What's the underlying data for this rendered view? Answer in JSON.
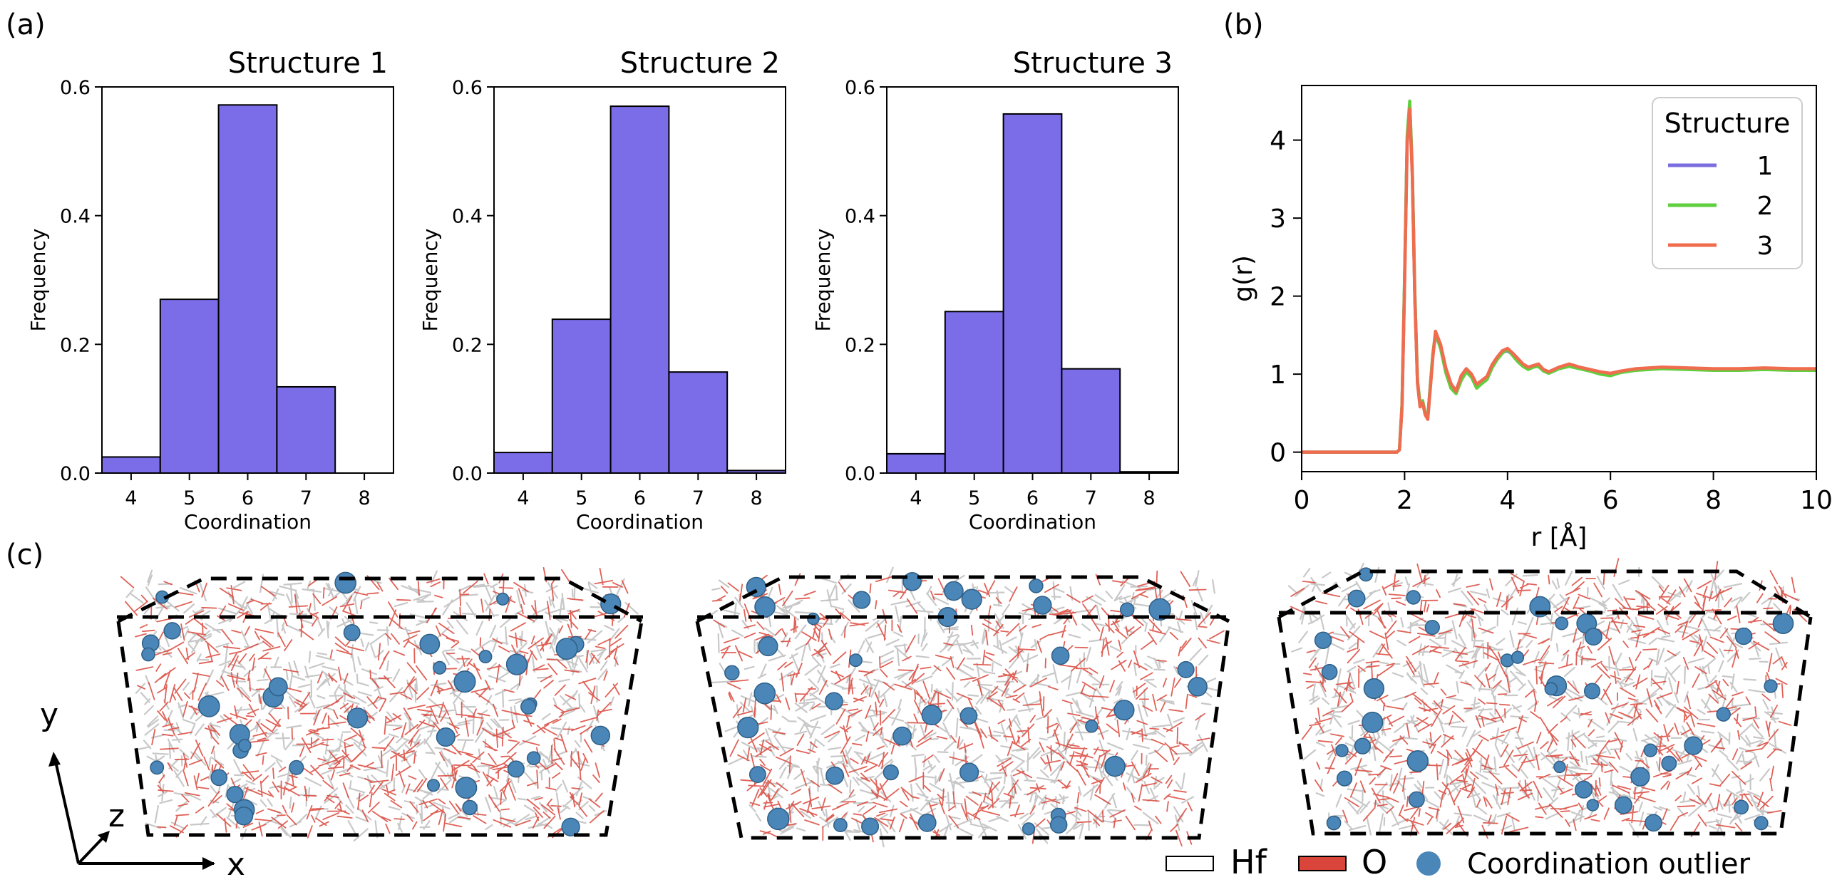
{
  "panel_labels": {
    "a": "(a)",
    "b": "(b)",
    "c": "(c)"
  },
  "chart_data": [
    {
      "type": "bar",
      "title": "Structure 1",
      "xlabel": "Coordination",
      "ylabel": "Frequency",
      "xlim": [
        3.5,
        8.5
      ],
      "ylim": [
        0,
        0.6
      ],
      "xticks": [
        "4",
        "5",
        "6",
        "7",
        "8"
      ],
      "yticks": [
        "0.0",
        "0.2",
        "0.4",
        "0.6"
      ],
      "bin_centers": [
        4,
        5,
        6,
        7,
        8
      ],
      "values": [
        0.025,
        0.27,
        0.572,
        0.134,
        0.0
      ],
      "bar_color": "#7b6ce8"
    },
    {
      "type": "bar",
      "title": "Structure 2",
      "xlabel": "Coordination",
      "ylabel": "Frequency",
      "xlim": [
        3.5,
        8.5
      ],
      "ylim": [
        0,
        0.6
      ],
      "xticks": [
        "4",
        "5",
        "6",
        "7",
        "8"
      ],
      "yticks": [
        "0.0",
        "0.2",
        "0.4",
        "0.6"
      ],
      "bin_centers": [
        4,
        5,
        6,
        7,
        8
      ],
      "values": [
        0.032,
        0.239,
        0.57,
        0.157,
        0.004
      ],
      "bar_color": "#7b6ce8"
    },
    {
      "type": "bar",
      "title": "Structure 3",
      "xlabel": "Coordination",
      "ylabel": "Frequency",
      "xlim": [
        3.5,
        8.5
      ],
      "ylim": [
        0,
        0.6
      ],
      "xticks": [
        "4",
        "5",
        "6",
        "7",
        "8"
      ],
      "yticks": [
        "0.0",
        "0.2",
        "0.4",
        "0.6"
      ],
      "bin_centers": [
        4,
        5,
        6,
        7,
        8
      ],
      "values": [
        0.03,
        0.251,
        0.558,
        0.162,
        0.002
      ],
      "bar_color": "#7b6ce8"
    },
    {
      "type": "line",
      "title": "",
      "xlabel": "r [Å]",
      "ylabel": "g(r)",
      "xlim": [
        0,
        10
      ],
      "ylim": [
        -0.25,
        4.7
      ],
      "xticks": [
        "0",
        "2",
        "4",
        "6",
        "8",
        "10"
      ],
      "yticks": [
        "0",
        "1",
        "2",
        "3",
        "4"
      ],
      "legend": {
        "title": "Structure",
        "position": "upper-right"
      },
      "x": [
        0,
        1.85,
        1.9,
        1.95,
        2.0,
        2.05,
        2.1,
        2.15,
        2.2,
        2.25,
        2.3,
        2.35,
        2.4,
        2.45,
        2.5,
        2.55,
        2.6,
        2.7,
        2.8,
        2.9,
        3.0,
        3.1,
        3.2,
        3.3,
        3.4,
        3.5,
        3.6,
        3.7,
        3.8,
        3.9,
        4.0,
        4.1,
        4.2,
        4.3,
        4.4,
        4.5,
        4.6,
        4.7,
        4.8,
        4.9,
        5.0,
        5.2,
        5.4,
        5.6,
        5.8,
        6.0,
        6.2,
        6.5,
        7.0,
        7.5,
        8.0,
        8.5,
        9.0,
        9.5,
        10.0
      ],
      "series": [
        {
          "name": "1",
          "color": "#7a6ddf",
          "values": [
            0,
            0.0,
            0.03,
            0.6,
            2.2,
            4.0,
            4.45,
            3.6,
            2.0,
            0.9,
            0.6,
            0.65,
            0.5,
            0.45,
            0.85,
            1.25,
            1.5,
            1.35,
            1.05,
            0.85,
            0.8,
            0.95,
            1.05,
            0.98,
            0.85,
            0.9,
            0.95,
            1.1,
            1.2,
            1.28,
            1.3,
            1.25,
            1.18,
            1.12,
            1.08,
            1.1,
            1.12,
            1.05,
            1.02,
            1.05,
            1.08,
            1.12,
            1.08,
            1.05,
            1.02,
            1.0,
            1.03,
            1.06,
            1.08,
            1.07,
            1.06,
            1.06,
            1.07,
            1.06,
            1.06
          ]
        },
        {
          "name": "2",
          "color": "#5fcf3e",
          "values": [
            0,
            0.0,
            0.03,
            0.62,
            2.25,
            4.05,
            4.5,
            3.62,
            2.02,
            0.92,
            0.62,
            0.66,
            0.5,
            0.45,
            0.86,
            1.27,
            1.52,
            1.33,
            1.02,
            0.82,
            0.75,
            0.92,
            1.03,
            0.96,
            0.82,
            0.88,
            0.93,
            1.08,
            1.19,
            1.27,
            1.32,
            1.24,
            1.16,
            1.1,
            1.06,
            1.09,
            1.1,
            1.04,
            1.01,
            1.04,
            1.07,
            1.1,
            1.07,
            1.04,
            1.0,
            0.98,
            1.02,
            1.05,
            1.07,
            1.06,
            1.05,
            1.05,
            1.06,
            1.05,
            1.05
          ]
        },
        {
          "name": "3",
          "color": "#ef6c4f",
          "values": [
            0,
            0.0,
            0.03,
            0.58,
            2.15,
            3.95,
            4.4,
            3.55,
            1.95,
            0.88,
            0.58,
            0.63,
            0.48,
            0.42,
            0.82,
            1.22,
            1.55,
            1.38,
            1.08,
            0.88,
            0.78,
            0.98,
            1.07,
            1.0,
            0.87,
            0.92,
            0.97,
            1.12,
            1.22,
            1.3,
            1.33,
            1.27,
            1.2,
            1.13,
            1.09,
            1.11,
            1.13,
            1.06,
            1.03,
            1.06,
            1.09,
            1.13,
            1.09,
            1.06,
            1.03,
            1.01,
            1.04,
            1.07,
            1.09,
            1.08,
            1.07,
            1.07,
            1.08,
            1.07,
            1.07
          ]
        }
      ]
    }
  ],
  "structures_3d": {
    "axes": {
      "y": "y",
      "z": "z",
      "x": "x"
    },
    "legend": {
      "hf": "Hf",
      "o": "O",
      "outlier": "Coordination outlier"
    },
    "colors": {
      "hf": "#c8c8c8",
      "o": "#d9453a",
      "outlier": "#4a86b8"
    }
  }
}
